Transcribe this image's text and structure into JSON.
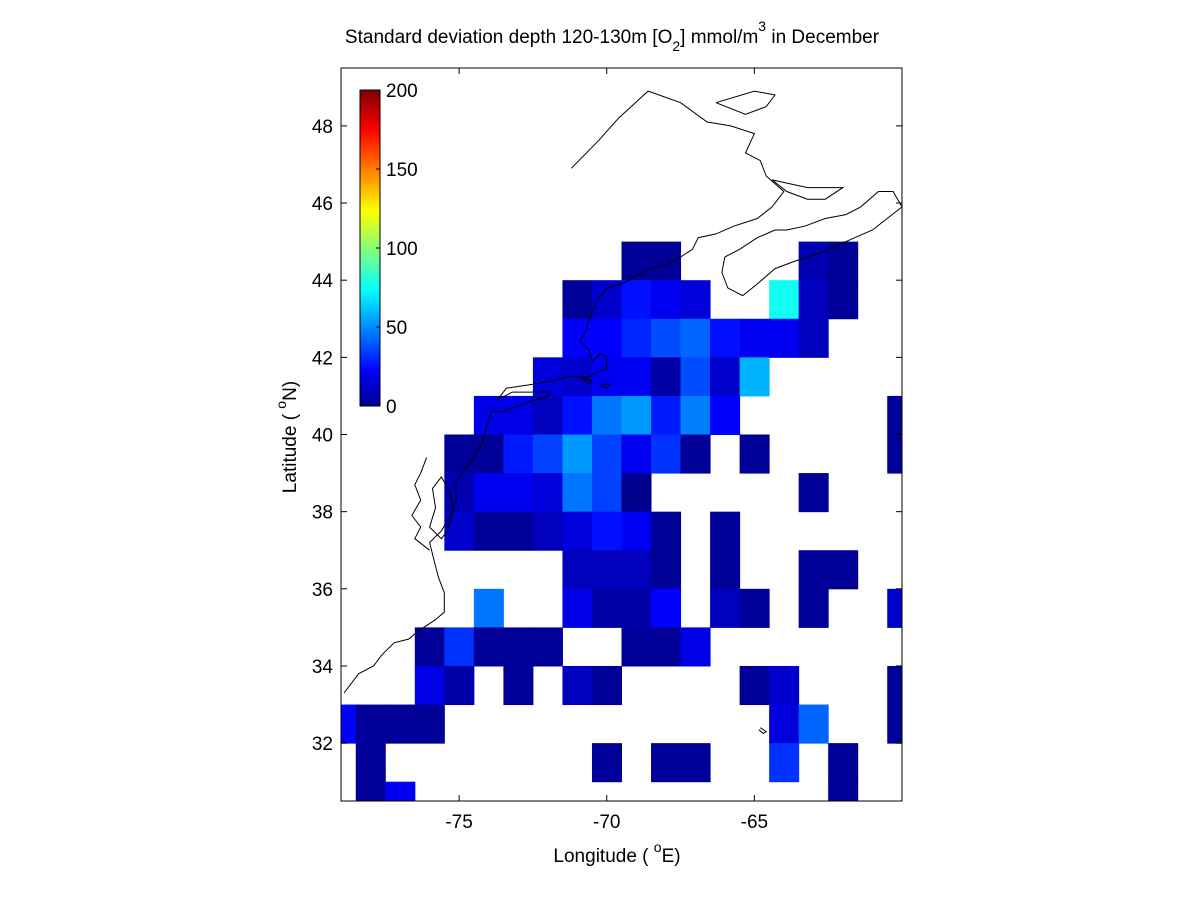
{
  "chart_data": {
    "type": "heatmap",
    "title": {
      "pre": "Standard deviation depth 120-130m [O",
      "sub": "2",
      "mid": "] mmol/m",
      "sup": "3",
      "post": " in December"
    },
    "xlabel": {
      "pre": "Longitude ( ",
      "sup": "o",
      "post": "E)"
    },
    "ylabel": {
      "pre": "Latitude ( ",
      "sup": "o",
      "post": "N)"
    },
    "xlim": [
      -79,
      -60
    ],
    "ylim": [
      30.5,
      49.5
    ],
    "xticks": [
      -75,
      -70,
      -65
    ],
    "xtick_labels": [
      "-75",
      "-70",
      "-65"
    ],
    "yticks": [
      32,
      34,
      36,
      38,
      40,
      42,
      44,
      46,
      48
    ],
    "ytick_labels": [
      "32",
      "34",
      "36",
      "38",
      "40",
      "42",
      "44",
      "46",
      "48"
    ],
    "colorbar": {
      "colormap": "jet",
      "range": [
        0,
        200
      ],
      "ticks": [
        0,
        50,
        100,
        150,
        200
      ],
      "tick_labels": [
        "0",
        "50",
        "100",
        "150",
        "200"
      ],
      "placement": "top-left inside axes"
    },
    "cell_size_deg": 1,
    "cells": [
      {
        "lon": -69,
        "lat": 44.5,
        "v": 5
      },
      {
        "lon": -68,
        "lat": 44.5,
        "v": 5
      },
      {
        "lon": -63,
        "lat": 44.5,
        "v": 10
      },
      {
        "lon": -62,
        "lat": 44.5,
        "v": 5
      },
      {
        "lon": -71,
        "lat": 43.5,
        "v": 5
      },
      {
        "lon": -70,
        "lat": 43.5,
        "v": 15
      },
      {
        "lon": -69,
        "lat": 43.5,
        "v": 28
      },
      {
        "lon": -68,
        "lat": 43.5,
        "v": 22
      },
      {
        "lon": -67,
        "lat": 43.5,
        "v": 18
      },
      {
        "lon": -64,
        "lat": 43.5,
        "v": 78
      },
      {
        "lon": -63,
        "lat": 43.5,
        "v": 12
      },
      {
        "lon": -62,
        "lat": 43.5,
        "v": 5
      },
      {
        "lon": -71,
        "lat": 42.5,
        "v": 25
      },
      {
        "lon": -70,
        "lat": 42.5,
        "v": 25
      },
      {
        "lon": -69,
        "lat": 42.5,
        "v": 32
      },
      {
        "lon": -68,
        "lat": 42.5,
        "v": 40
      },
      {
        "lon": -67,
        "lat": 42.5,
        "v": 45
      },
      {
        "lon": -66,
        "lat": 42.5,
        "v": 28
      },
      {
        "lon": -65,
        "lat": 42.5,
        "v": 22
      },
      {
        "lon": -64,
        "lat": 42.5,
        "v": 22
      },
      {
        "lon": -63,
        "lat": 42.5,
        "v": 12
      },
      {
        "lon": -72,
        "lat": 41.5,
        "v": 18
      },
      {
        "lon": -71,
        "lat": 41.5,
        "v": 15
      },
      {
        "lon": -70,
        "lat": 41.5,
        "v": 22
      },
      {
        "lon": -69,
        "lat": 41.5,
        "v": 22
      },
      {
        "lon": -68,
        "lat": 41.5,
        "v": 8
      },
      {
        "lon": -67,
        "lat": 41.5,
        "v": 40
      },
      {
        "lon": -66,
        "lat": 41.5,
        "v": 15
      },
      {
        "lon": -65,
        "lat": 41.5,
        "v": 60
      },
      {
        "lon": -74,
        "lat": 40.5,
        "v": 20
      },
      {
        "lon": -73,
        "lat": 40.5,
        "v": 20
      },
      {
        "lon": -72,
        "lat": 40.5,
        "v": 12
      },
      {
        "lon": -71,
        "lat": 40.5,
        "v": 28
      },
      {
        "lon": -70,
        "lat": 40.5,
        "v": 48
      },
      {
        "lon": -69,
        "lat": 40.5,
        "v": 55
      },
      {
        "lon": -68,
        "lat": 40.5,
        "v": 30
      },
      {
        "lon": -67,
        "lat": 40.5,
        "v": 50
      },
      {
        "lon": -66,
        "lat": 40.5,
        "v": 25
      },
      {
        "lon": -60,
        "lat": 40.5,
        "v": 5
      },
      {
        "lon": -75,
        "lat": 39.5,
        "v": 5
      },
      {
        "lon": -74,
        "lat": 39.5,
        "v": 5
      },
      {
        "lon": -73,
        "lat": 39.5,
        "v": 30
      },
      {
        "lon": -72,
        "lat": 39.5,
        "v": 38
      },
      {
        "lon": -71,
        "lat": 39.5,
        "v": 55
      },
      {
        "lon": -70,
        "lat": 39.5,
        "v": 38
      },
      {
        "lon": -69,
        "lat": 39.5,
        "v": 22
      },
      {
        "lon": -68,
        "lat": 39.5,
        "v": 35
      },
      {
        "lon": -67,
        "lat": 39.5,
        "v": 5
      },
      {
        "lon": -65,
        "lat": 39.5,
        "v": 5
      },
      {
        "lon": -60,
        "lat": 39.5,
        "v": 5
      },
      {
        "lon": -75,
        "lat": 38.5,
        "v": 10
      },
      {
        "lon": -74,
        "lat": 38.5,
        "v": 22
      },
      {
        "lon": -73,
        "lat": 38.5,
        "v": 22
      },
      {
        "lon": -72,
        "lat": 38.5,
        "v": 18
      },
      {
        "lon": -71,
        "lat": 38.5,
        "v": 48
      },
      {
        "lon": -70,
        "lat": 38.5,
        "v": 38
      },
      {
        "lon": -69,
        "lat": 38.5,
        "v": 3
      },
      {
        "lon": -63,
        "lat": 38.5,
        "v": 5
      },
      {
        "lon": -75,
        "lat": 37.5,
        "v": 15
      },
      {
        "lon": -74,
        "lat": 37.5,
        "v": 5
      },
      {
        "lon": -73,
        "lat": 37.5,
        "v": 5
      },
      {
        "lon": -72,
        "lat": 37.5,
        "v": 12
      },
      {
        "lon": -71,
        "lat": 37.5,
        "v": 18
      },
      {
        "lon": -70,
        "lat": 37.5,
        "v": 28
      },
      {
        "lon": -69,
        "lat": 37.5,
        "v": 22
      },
      {
        "lon": -68,
        "lat": 37.5,
        "v": 5
      },
      {
        "lon": -66,
        "lat": 37.5,
        "v": 5
      },
      {
        "lon": -71,
        "lat": 36.5,
        "v": 12
      },
      {
        "lon": -70,
        "lat": 36.5,
        "v": 12
      },
      {
        "lon": -69,
        "lat": 36.5,
        "v": 12
      },
      {
        "lon": -68,
        "lat": 36.5,
        "v": 5
      },
      {
        "lon": -66,
        "lat": 36.5,
        "v": 5
      },
      {
        "lon": -63,
        "lat": 36.5,
        "v": 5
      },
      {
        "lon": -62,
        "lat": 36.5,
        "v": 5
      },
      {
        "lon": -74,
        "lat": 35.5,
        "v": 48
      },
      {
        "lon": -71,
        "lat": 35.5,
        "v": 20
      },
      {
        "lon": -70,
        "lat": 35.5,
        "v": 8
      },
      {
        "lon": -69,
        "lat": 35.5,
        "v": 8
      },
      {
        "lon": -68,
        "lat": 35.5,
        "v": 25
      },
      {
        "lon": -66,
        "lat": 35.5,
        "v": 12
      },
      {
        "lon": -65,
        "lat": 35.5,
        "v": 5
      },
      {
        "lon": -63,
        "lat": 35.5,
        "v": 5
      },
      {
        "lon": -60,
        "lat": 35.5,
        "v": 15
      },
      {
        "lon": -76,
        "lat": 34.5,
        "v": 5
      },
      {
        "lon": -75,
        "lat": 34.5,
        "v": 35
      },
      {
        "lon": -74,
        "lat": 34.5,
        "v": 5
      },
      {
        "lon": -73,
        "lat": 34.5,
        "v": 5
      },
      {
        "lon": -72,
        "lat": 34.5,
        "v": 5
      },
      {
        "lon": -69,
        "lat": 34.5,
        "v": 5
      },
      {
        "lon": -68,
        "lat": 34.5,
        "v": 5
      },
      {
        "lon": -67,
        "lat": 34.5,
        "v": 20
      },
      {
        "lon": -76,
        "lat": 33.5,
        "v": 20
      },
      {
        "lon": -75,
        "lat": 33.5,
        "v": 8
      },
      {
        "lon": -73,
        "lat": 33.5,
        "v": 5
      },
      {
        "lon": -71,
        "lat": 33.5,
        "v": 12
      },
      {
        "lon": -70,
        "lat": 33.5,
        "v": 5
      },
      {
        "lon": -65,
        "lat": 33.5,
        "v": 5
      },
      {
        "lon": -64,
        "lat": 33.5,
        "v": 15
      },
      {
        "lon": -60,
        "lat": 33.5,
        "v": 5
      },
      {
        "lon": -79,
        "lat": 32.5,
        "v": 25
      },
      {
        "lon": -78,
        "lat": 32.5,
        "v": 5
      },
      {
        "lon": -77,
        "lat": 32.5,
        "v": 5
      },
      {
        "lon": -76,
        "lat": 32.5,
        "v": 5
      },
      {
        "lon": -64,
        "lat": 32.5,
        "v": 18
      },
      {
        "lon": -63,
        "lat": 32.5,
        "v": 45
      },
      {
        "lon": -60,
        "lat": 32.5,
        "v": 5
      },
      {
        "lon": -78,
        "lat": 31.5,
        "v": 5
      },
      {
        "lon": -70,
        "lat": 31.5,
        "v": 5
      },
      {
        "lon": -68,
        "lat": 31.5,
        "v": 5
      },
      {
        "lon": -67,
        "lat": 31.5,
        "v": 5
      },
      {
        "lon": -64,
        "lat": 31.5,
        "v": 35
      },
      {
        "lon": -62,
        "lat": 31.5,
        "v": 5
      },
      {
        "lon": -78,
        "lat": 30.5,
        "v": 5
      },
      {
        "lon": -77,
        "lat": 30.5,
        "v": 22
      },
      {
        "lon": -62,
        "lat": 30.5,
        "v": 5
      }
    ],
    "coastline": [
      [
        [
          -78.9,
          33.3
        ],
        [
          -78.4,
          33.8
        ],
        [
          -77.9,
          34.0
        ],
        [
          -77.6,
          34.3
        ],
        [
          -77.2,
          34.6
        ],
        [
          -76.7,
          34.7
        ],
        [
          -76.4,
          34.9
        ],
        [
          -75.8,
          35.2
        ],
        [
          -75.5,
          35.4
        ],
        [
          -75.5,
          35.9
        ],
        [
          -75.7,
          36.3
        ],
        [
          -75.9,
          36.9
        ],
        [
          -76.0,
          37.2
        ],
        [
          -75.6,
          37.5
        ],
        [
          -75.3,
          37.9
        ],
        [
          -75.1,
          38.3
        ],
        [
          -75.1,
          38.8
        ],
        [
          -74.9,
          39.0
        ],
        [
          -74.6,
          39.3
        ],
        [
          -74.2,
          39.8
        ],
        [
          -74.0,
          40.4
        ],
        [
          -73.9,
          40.6
        ],
        [
          -73.5,
          40.6
        ],
        [
          -72.8,
          40.8
        ],
        [
          -72.0,
          41.0
        ],
        [
          -71.9,
          41.1
        ],
        [
          -72.5,
          41.1
        ],
        [
          -73.2,
          41.1
        ],
        [
          -73.7,
          40.9
        ],
        [
          -73.4,
          41.2
        ],
        [
          -72.5,
          41.3
        ],
        [
          -71.8,
          41.4
        ],
        [
          -71.3,
          41.5
        ],
        [
          -71.0,
          41.5
        ],
        [
          -70.6,
          41.5
        ],
        [
          -70.4,
          41.6
        ],
        [
          -70.0,
          41.7
        ],
        [
          -70.0,
          42.0
        ],
        [
          -70.2,
          42.1
        ],
        [
          -70.5,
          41.9
        ],
        [
          -70.6,
          42.2
        ],
        [
          -70.9,
          42.4
        ],
        [
          -70.7,
          42.7
        ],
        [
          -70.6,
          43.0
        ],
        [
          -70.3,
          43.5
        ],
        [
          -70.0,
          43.8
        ],
        [
          -69.5,
          43.9
        ],
        [
          -69.0,
          44.1
        ],
        [
          -68.5,
          44.3
        ],
        [
          -68.0,
          44.4
        ],
        [
          -67.5,
          44.6
        ],
        [
          -67.1,
          44.8
        ],
        [
          -66.9,
          45.1
        ],
        [
          -66.3,
          45.2
        ],
        [
          -65.7,
          45.4
        ],
        [
          -64.9,
          45.6
        ],
        [
          -64.4,
          45.9
        ],
        [
          -64.2,
          46.1
        ],
        [
          -64.0,
          46.3
        ],
        [
          -64.6,
          46.7
        ],
        [
          -64.8,
          47.1
        ],
        [
          -65.3,
          47.3
        ],
        [
          -65.0,
          47.8
        ],
        [
          -65.8,
          48.0
        ],
        [
          -66.6,
          48.1
        ],
        [
          -67.5,
          48.6
        ],
        [
          -68.6,
          48.9
        ],
        [
          -69.6,
          48.2
        ],
        [
          -70.3,
          47.6
        ],
        [
          -71.2,
          46.9
        ]
      ],
      [
        [
          -66.0,
          44.6
        ],
        [
          -65.5,
          44.8
        ],
        [
          -64.9,
          45.1
        ],
        [
          -64.3,
          45.3
        ],
        [
          -63.9,
          45.3
        ],
        [
          -63.3,
          45.4
        ],
        [
          -62.6,
          45.6
        ],
        [
          -61.9,
          45.7
        ],
        [
          -61.4,
          45.9
        ],
        [
          -60.8,
          46.3
        ],
        [
          -60.3,
          46.3
        ],
        [
          -60.0,
          45.9
        ],
        [
          -60.5,
          45.6
        ],
        [
          -61.0,
          45.3
        ],
        [
          -61.9,
          45.0
        ],
        [
          -62.8,
          44.7
        ],
        [
          -63.6,
          44.5
        ],
        [
          -64.3,
          44.3
        ],
        [
          -64.9,
          43.9
        ],
        [
          -65.4,
          43.6
        ],
        [
          -65.9,
          43.8
        ],
        [
          -66.1,
          44.2
        ],
        [
          -66.0,
          44.6
        ]
      ],
      [
        [
          -64.4,
          46.6
        ],
        [
          -63.8,
          46.5
        ],
        [
          -63.2,
          46.4
        ],
        [
          -62.5,
          46.4
        ],
        [
          -62.0,
          46.4
        ],
        [
          -62.6,
          46.1
        ],
        [
          -63.2,
          46.1
        ],
        [
          -63.9,
          46.3
        ],
        [
          -64.4,
          46.6
        ]
      ],
      [
        [
          -66.3,
          48.6
        ],
        [
          -65.0,
          48.9
        ],
        [
          -64.3,
          48.8
        ],
        [
          -64.6,
          48.5
        ],
        [
          -65.3,
          48.3
        ],
        [
          -66.3,
          48.6
        ]
      ],
      [
        [
          -70.9,
          41.5
        ],
        [
          -70.5,
          41.4
        ],
        [
          -70.6,
          41.3
        ],
        [
          -70.9,
          41.5
        ]
      ],
      [
        [
          -70.2,
          41.3
        ],
        [
          -69.9,
          41.3
        ],
        [
          -70.0,
          41.2
        ],
        [
          -70.2,
          41.3
        ]
      ],
      [
        [
          -75.2,
          38.0
        ],
        [
          -75.3,
          38.5
        ],
        [
          -75.6,
          38.9
        ],
        [
          -75.9,
          38.6
        ],
        [
          -75.8,
          38.1
        ],
        [
          -76.0,
          37.6
        ],
        [
          -75.6,
          37.3
        ],
        [
          -75.4,
          37.5
        ],
        [
          -75.2,
          38.0
        ]
      ],
      [
        [
          -76.1,
          39.4
        ],
        [
          -76.3,
          39.0
        ],
        [
          -76.5,
          38.7
        ],
        [
          -76.3,
          38.3
        ],
        [
          -76.6,
          37.9
        ],
        [
          -76.3,
          37.6
        ],
        [
          -76.5,
          37.3
        ],
        [
          -76.0,
          37.0
        ]
      ],
      [
        [
          -64.8,
          32.4
        ],
        [
          -64.6,
          32.3
        ],
        [
          -64.7,
          32.25
        ],
        [
          -64.85,
          32.35
        ]
      ]
    ]
  }
}
